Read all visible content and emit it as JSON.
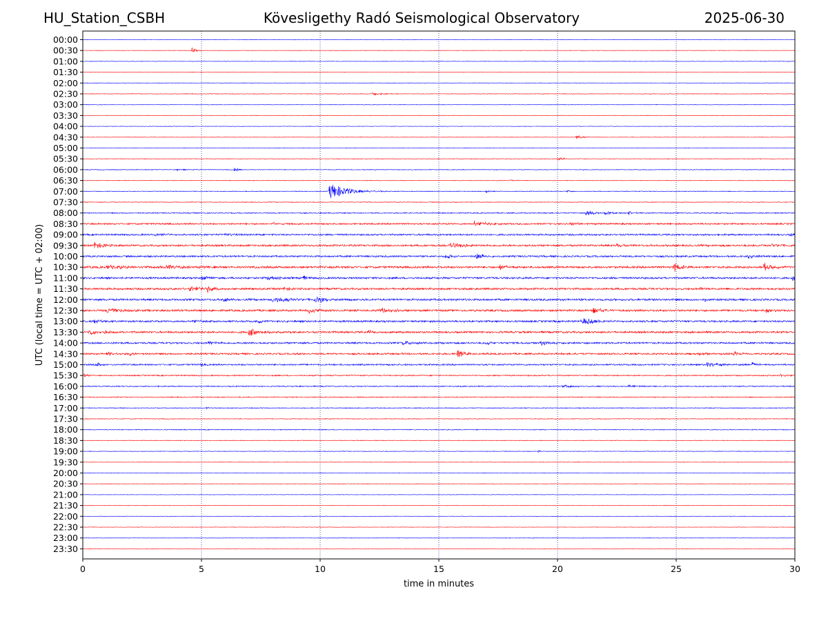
{
  "header": {
    "station": "HU_Station_CSBH",
    "observatory": "Kövesligethy Radó Seismological Observatory",
    "date": "2025-06-30"
  },
  "chart_data": {
    "type": "line",
    "title": "Kövesligethy Radó Seismological Observatory",
    "xlabel": "time in minutes",
    "ylabel": "UTC (local time = UTC + 02:00)",
    "xlim": [
      0,
      30
    ],
    "xticks": [
      0,
      5,
      10,
      15,
      20,
      25,
      30
    ],
    "grid": "vertical dotted lines at x = 5, 10, 15, 20, 25",
    "colors": {
      "even_rows": "#0000ff",
      "odd_rows": "#ff0000",
      "grid": "#000080"
    },
    "rows": [
      {
        "label": "00:00",
        "color": "#0000ff",
        "noise": 0.4,
        "events": []
      },
      {
        "label": "00:30",
        "color": "#ff0000",
        "noise": 0.4,
        "events": [
          {
            "t": 4.6,
            "amp": 5,
            "dur": 0.25
          }
        ]
      },
      {
        "label": "01:00",
        "color": "#0000ff",
        "noise": 0.4,
        "events": []
      },
      {
        "label": "01:30",
        "color": "#ff0000",
        "noise": 0.4,
        "events": []
      },
      {
        "label": "02:00",
        "color": "#0000ff",
        "noise": 0.4,
        "events": []
      },
      {
        "label": "02:30",
        "color": "#ff0000",
        "noise": 0.5,
        "events": [
          {
            "t": 12.2,
            "amp": 2,
            "dur": 0.8
          }
        ]
      },
      {
        "label": "03:00",
        "color": "#0000ff",
        "noise": 0.4,
        "events": []
      },
      {
        "label": "03:30",
        "color": "#ff0000",
        "noise": 0.4,
        "events": []
      },
      {
        "label": "04:00",
        "color": "#0000ff",
        "noise": 0.4,
        "events": []
      },
      {
        "label": "04:30",
        "color": "#ff0000",
        "noise": 0.4,
        "events": [
          {
            "t": 20.8,
            "amp": 3,
            "dur": 0.4
          }
        ]
      },
      {
        "label": "05:00",
        "color": "#0000ff",
        "noise": 0.4,
        "events": []
      },
      {
        "label": "05:30",
        "color": "#ff0000",
        "noise": 0.5,
        "events": [
          {
            "t": 20.0,
            "amp": 2,
            "dur": 0.6
          }
        ]
      },
      {
        "label": "06:00",
        "color": "#0000ff",
        "noise": 0.6,
        "events": [
          {
            "t": 4.0,
            "amp": 2,
            "dur": 0.4
          },
          {
            "t": 6.4,
            "amp": 3,
            "dur": 0.3
          }
        ]
      },
      {
        "label": "06:30",
        "color": "#ff0000",
        "noise": 0.5,
        "events": [
          {
            "t": 18.0,
            "amp": 1.5,
            "dur": 0.3
          }
        ]
      },
      {
        "label": "07:00",
        "color": "#0000ff",
        "noise": 0.6,
        "events": [
          {
            "t": 10.4,
            "amp": 12,
            "dur": 1.2
          },
          {
            "t": 17.0,
            "amp": 2,
            "dur": 0.2
          },
          {
            "t": 20.4,
            "amp": 2,
            "dur": 0.2
          }
        ]
      },
      {
        "label": "07:30",
        "color": "#ff0000",
        "noise": 0.6,
        "events": []
      },
      {
        "label": "08:00",
        "color": "#0000ff",
        "noise": 0.9,
        "events": [
          {
            "t": 21.2,
            "amp": 4,
            "dur": 0.6
          },
          {
            "t": 22.0,
            "amp": 3,
            "dur": 0.5
          },
          {
            "t": 23.0,
            "amp": 3,
            "dur": 0.3
          }
        ]
      },
      {
        "label": "08:30",
        "color": "#ff0000",
        "noise": 1.4,
        "events": [
          {
            "t": 16.5,
            "amp": 4,
            "dur": 0.8
          },
          {
            "t": 20.5,
            "amp": 3,
            "dur": 0.6
          },
          {
            "t": 8.0,
            "amp": 2,
            "dur": 0.6
          }
        ]
      },
      {
        "label": "09:00",
        "color": "#0000ff",
        "noise": 1.4,
        "events": [
          {
            "t": 3.0,
            "amp": 2.5,
            "dur": 1.0
          },
          {
            "t": 6.0,
            "amp": 2,
            "dur": 0.6
          },
          {
            "t": 29.8,
            "amp": 2,
            "dur": 0.3
          }
        ]
      },
      {
        "label": "09:30",
        "color": "#ff0000",
        "noise": 1.6,
        "events": [
          {
            "t": 0.5,
            "amp": 5,
            "dur": 0.6
          },
          {
            "t": 15.5,
            "amp": 3.5,
            "dur": 1.2
          },
          {
            "t": 22.5,
            "amp": 3,
            "dur": 0.4
          },
          {
            "t": 29.0,
            "amp": 3,
            "dur": 0.6
          }
        ]
      },
      {
        "label": "10:00",
        "color": "#0000ff",
        "noise": 1.5,
        "events": [
          {
            "t": 15.3,
            "amp": 4,
            "dur": 0.4
          },
          {
            "t": 16.6,
            "amp": 6,
            "dur": 0.4
          },
          {
            "t": 28.0,
            "amp": 5,
            "dur": 0.4
          }
        ]
      },
      {
        "label": "10:30",
        "color": "#ff0000",
        "noise": 1.8,
        "events": [
          {
            "t": 1.0,
            "amp": 3,
            "dur": 1.5
          },
          {
            "t": 3.5,
            "amp": 3,
            "dur": 1.5
          },
          {
            "t": 17.6,
            "amp": 5,
            "dur": 0.3
          },
          {
            "t": 24.9,
            "amp": 6,
            "dur": 0.6
          },
          {
            "t": 28.7,
            "amp": 6,
            "dur": 0.5
          }
        ]
      },
      {
        "label": "11:00",
        "color": "#0000ff",
        "noise": 1.6,
        "events": [
          {
            "t": 5.0,
            "amp": 4,
            "dur": 0.5
          },
          {
            "t": 7.8,
            "amp": 4,
            "dur": 0.6
          },
          {
            "t": 9.3,
            "amp": 5,
            "dur": 0.3
          },
          {
            "t": 29.9,
            "amp": 4,
            "dur": 0.2
          }
        ]
      },
      {
        "label": "11:30",
        "color": "#ff0000",
        "noise": 1.7,
        "events": [
          {
            "t": 4.5,
            "amp": 3,
            "dur": 1.2
          },
          {
            "t": 5.2,
            "amp": 6,
            "dur": 0.4
          },
          {
            "t": 8.5,
            "amp": 3,
            "dur": 0.4
          },
          {
            "t": 26.0,
            "amp": 3,
            "dur": 0.3
          }
        ]
      },
      {
        "label": "12:00",
        "color": "#0000ff",
        "noise": 1.7,
        "events": [
          {
            "t": 5.9,
            "amp": 4,
            "dur": 0.3
          },
          {
            "t": 8.0,
            "amp": 4,
            "dur": 1.5
          },
          {
            "t": 9.8,
            "amp": 5,
            "dur": 0.6
          },
          {
            "t": 26.2,
            "amp": 3,
            "dur": 0.3
          }
        ]
      },
      {
        "label": "12:30",
        "color": "#ff0000",
        "noise": 1.7,
        "events": [
          {
            "t": 1.0,
            "amp": 4,
            "dur": 1.2
          },
          {
            "t": 9.5,
            "amp": 6,
            "dur": 0.4
          },
          {
            "t": 12.5,
            "amp": 4,
            "dur": 0.8
          },
          {
            "t": 21.5,
            "amp": 4,
            "dur": 0.6
          },
          {
            "t": 28.8,
            "amp": 4,
            "dur": 0.4
          }
        ]
      },
      {
        "label": "13:00",
        "color": "#0000ff",
        "noise": 1.6,
        "events": [
          {
            "t": 0.5,
            "amp": 3,
            "dur": 0.6
          },
          {
            "t": 4.6,
            "amp": 3,
            "dur": 0.4
          },
          {
            "t": 7.4,
            "amp": 3,
            "dur": 0.3
          },
          {
            "t": 21.0,
            "amp": 5,
            "dur": 1.2
          }
        ]
      },
      {
        "label": "13:30",
        "color": "#ff0000",
        "noise": 1.7,
        "events": [
          {
            "t": 0.3,
            "amp": 6,
            "dur": 0.3
          },
          {
            "t": 0.9,
            "amp": 4,
            "dur": 0.3
          },
          {
            "t": 7.0,
            "amp": 5,
            "dur": 0.8
          },
          {
            "t": 12.0,
            "amp": 3,
            "dur": 0.4
          }
        ]
      },
      {
        "label": "14:00",
        "color": "#0000ff",
        "noise": 1.5,
        "events": [
          {
            "t": 5.3,
            "amp": 3,
            "dur": 0.6
          },
          {
            "t": 13.5,
            "amp": 3,
            "dur": 0.6
          },
          {
            "t": 17.0,
            "amp": 3,
            "dur": 0.3
          },
          {
            "t": 19.3,
            "amp": 3,
            "dur": 0.8
          }
        ]
      },
      {
        "label": "14:30",
        "color": "#ff0000",
        "noise": 1.5,
        "events": [
          {
            "t": 1.0,
            "amp": 3,
            "dur": 0.5
          },
          {
            "t": 2.0,
            "amp": 3,
            "dur": 0.3
          },
          {
            "t": 15.8,
            "amp": 6,
            "dur": 0.5
          },
          {
            "t": 27.4,
            "amp": 6,
            "dur": 0.3
          },
          {
            "t": 26.0,
            "amp": 3,
            "dur": 0.4
          }
        ]
      },
      {
        "label": "15:00",
        "color": "#0000ff",
        "noise": 1.3,
        "events": [
          {
            "t": 0.6,
            "amp": 3,
            "dur": 0.3
          },
          {
            "t": 5.0,
            "amp": 4,
            "dur": 0.2
          },
          {
            "t": 26.3,
            "amp": 4,
            "dur": 0.8
          },
          {
            "t": 28.2,
            "amp": 4,
            "dur": 0.3
          }
        ]
      },
      {
        "label": "15:30",
        "color": "#ff0000",
        "noise": 1.0,
        "events": [
          {
            "t": 0.05,
            "amp": 4,
            "dur": 0.2
          },
          {
            "t": 29.4,
            "amp": 2,
            "dur": 0.3
          }
        ]
      },
      {
        "label": "16:00",
        "color": "#0000ff",
        "noise": 0.9,
        "events": [
          {
            "t": 20.2,
            "amp": 2,
            "dur": 1.0
          },
          {
            "t": 23.0,
            "amp": 3,
            "dur": 0.4
          }
        ]
      },
      {
        "label": "16:30",
        "color": "#ff0000",
        "noise": 0.8,
        "events": []
      },
      {
        "label": "17:00",
        "color": "#0000ff",
        "noise": 0.7,
        "events": [
          {
            "t": 5.2,
            "amp": 1.5,
            "dur": 0.3
          }
        ]
      },
      {
        "label": "17:30",
        "color": "#ff0000",
        "noise": 0.6,
        "events": []
      },
      {
        "label": "18:00",
        "color": "#0000ff",
        "noise": 0.7,
        "events": []
      },
      {
        "label": "18:30",
        "color": "#ff0000",
        "noise": 0.5,
        "events": []
      },
      {
        "label": "19:00",
        "color": "#0000ff",
        "noise": 0.5,
        "events": [
          {
            "t": 19.2,
            "amp": 2,
            "dur": 0.1
          }
        ]
      },
      {
        "label": "19:30",
        "color": "#ff0000",
        "noise": 0.4,
        "events": []
      },
      {
        "label": "20:00",
        "color": "#0000ff",
        "noise": 0.4,
        "events": []
      },
      {
        "label": "20:30",
        "color": "#ff0000",
        "noise": 0.4,
        "events": []
      },
      {
        "label": "21:00",
        "color": "#0000ff",
        "noise": 0.4,
        "events": []
      },
      {
        "label": "21:30",
        "color": "#ff0000",
        "noise": 0.4,
        "events": []
      },
      {
        "label": "22:00",
        "color": "#0000ff",
        "noise": 0.4,
        "events": []
      },
      {
        "label": "22:30",
        "color": "#ff0000",
        "noise": 0.4,
        "events": []
      },
      {
        "label": "23:00",
        "color": "#0000ff",
        "noise": 0.4,
        "events": []
      },
      {
        "label": "23:30",
        "color": "#ff0000",
        "noise": 0.4,
        "events": []
      }
    ]
  }
}
